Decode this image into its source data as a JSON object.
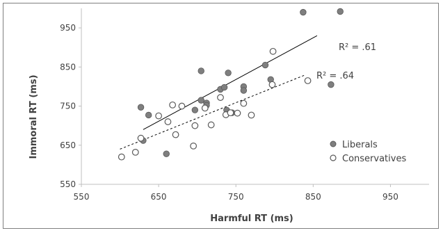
{
  "chart_data": {
    "type": "scatter",
    "xlabel": "Harmful RT (ms)",
    "ylabel": "Immoral RT (ms)",
    "xlim": [
      550,
      1000
    ],
    "ylim": [
      550,
      1000
    ],
    "x_ticks": [
      "550",
      "650",
      "750",
      "850",
      "950"
    ],
    "y_ticks": [
      "550",
      "650",
      "750",
      "850",
      "950"
    ],
    "legend_position": "right-lower",
    "colors": {
      "liberals": "#7f7f7f",
      "conservatives": "#ffffff",
      "marker_stroke": "#595959",
      "trend": "#000000"
    },
    "series": [
      {
        "name": "Liberals",
        "marker": "filled-circle",
        "r2_label": "R² = .61",
        "trendline": {
          "style": "solid",
          "x": [
            630,
            855
          ],
          "y": [
            690,
            930
          ]
        },
        "points": [
          {
            "x": 627,
            "y": 747
          },
          {
            "x": 637,
            "y": 727
          },
          {
            "x": 630,
            "y": 662
          },
          {
            "x": 660,
            "y": 628
          },
          {
            "x": 697,
            "y": 740
          },
          {
            "x": 705,
            "y": 765
          },
          {
            "x": 705,
            "y": 840
          },
          {
            "x": 712,
            "y": 758
          },
          {
            "x": 712,
            "y": 752
          },
          {
            "x": 730,
            "y": 793
          },
          {
            "x": 735,
            "y": 798
          },
          {
            "x": 740,
            "y": 835
          },
          {
            "x": 738,
            "y": 740
          },
          {
            "x": 745,
            "y": 733
          },
          {
            "x": 760,
            "y": 800
          },
          {
            "x": 760,
            "y": 790
          },
          {
            "x": 788,
            "y": 855
          },
          {
            "x": 795,
            "y": 818
          },
          {
            "x": 837,
            "y": 990
          },
          {
            "x": 873,
            "y": 805
          },
          {
            "x": 885,
            "y": 992
          }
        ]
      },
      {
        "name": "Conservatives",
        "marker": "hollow-circle",
        "r2_label": "R² = .64",
        "trendline": {
          "style": "dashed",
          "x": [
            600,
            840
          ],
          "y": [
            640,
            830
          ]
        },
        "points": [
          {
            "x": 602,
            "y": 620
          },
          {
            "x": 620,
            "y": 632
          },
          {
            "x": 627,
            "y": 668
          },
          {
            "x": 650,
            "y": 725
          },
          {
            "x": 662,
            "y": 710
          },
          {
            "x": 668,
            "y": 753
          },
          {
            "x": 672,
            "y": 677
          },
          {
            "x": 680,
            "y": 750
          },
          {
            "x": 695,
            "y": 648
          },
          {
            "x": 697,
            "y": 700
          },
          {
            "x": 710,
            "y": 745
          },
          {
            "x": 718,
            "y": 702
          },
          {
            "x": 730,
            "y": 772
          },
          {
            "x": 737,
            "y": 728
          },
          {
            "x": 743,
            "y": 733
          },
          {
            "x": 752,
            "y": 732
          },
          {
            "x": 760,
            "y": 757
          },
          {
            "x": 770,
            "y": 727
          },
          {
            "x": 797,
            "y": 805
          },
          {
            "x": 798,
            "y": 890
          },
          {
            "x": 843,
            "y": 815
          }
        ]
      }
    ]
  }
}
